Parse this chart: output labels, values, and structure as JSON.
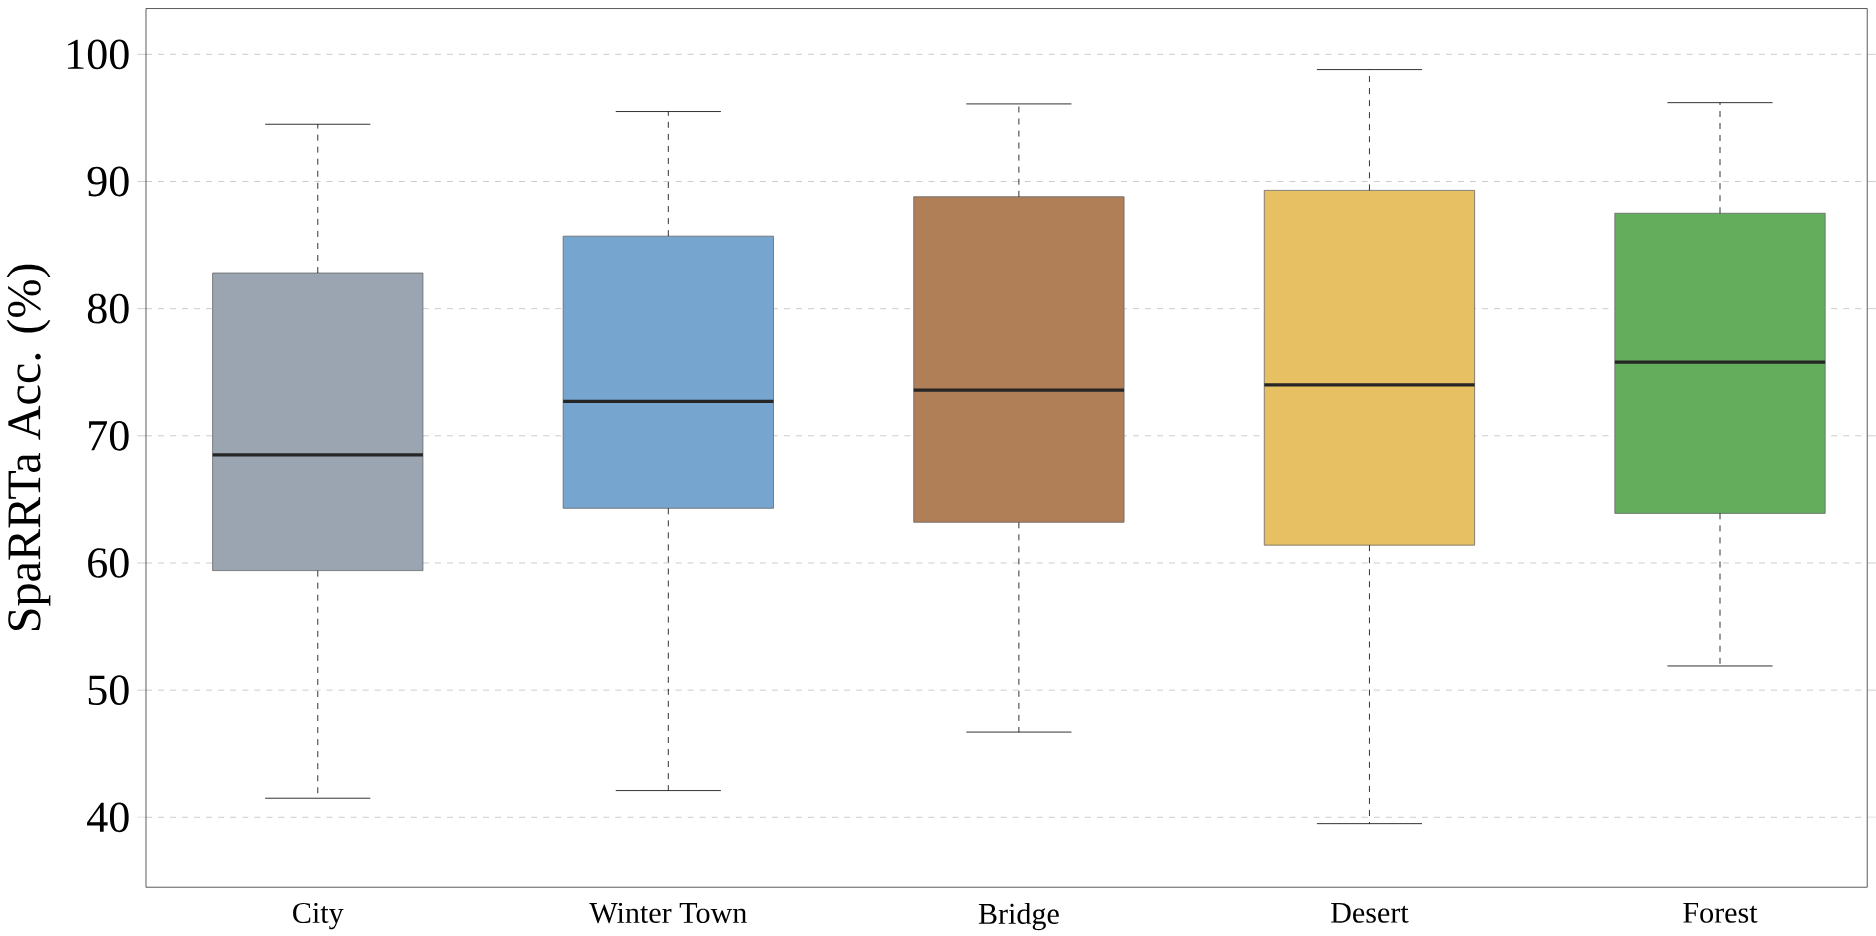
{
  "chart_data": {
    "type": "box",
    "ylabel": "SpaRRTa Acc. (%)",
    "categories": [
      "City",
      "Winter Town",
      "Bridge",
      "Desert",
      "Forest"
    ],
    "colors": [
      "#9aa5b1",
      "#76a5cf",
      "#b07e57",
      "#e6c062",
      "#63ad5d"
    ],
    "boxes": [
      {
        "low": 41.5,
        "q1": 59.4,
        "median": 68.5,
        "q3": 82.8,
        "high": 94.5
      },
      {
        "low": 42.1,
        "q1": 64.3,
        "median": 72.7,
        "q3": 85.7,
        "high": 95.5
      },
      {
        "low": 46.7,
        "q1": 63.2,
        "median": 73.6,
        "q3": 88.8,
        "high": 96.1
      },
      {
        "low": 39.5,
        "q1": 61.4,
        "median": 74.0,
        "q3": 89.3,
        "high": 98.8
      },
      {
        "low": 51.9,
        "q1": 63.9,
        "median": 75.8,
        "q3": 87.5,
        "high": 96.2
      }
    ],
    "ylim": [
      34.5,
      103.6
    ],
    "yticks": [
      40,
      50,
      60,
      70,
      80,
      90,
      100
    ],
    "grid": "y"
  }
}
